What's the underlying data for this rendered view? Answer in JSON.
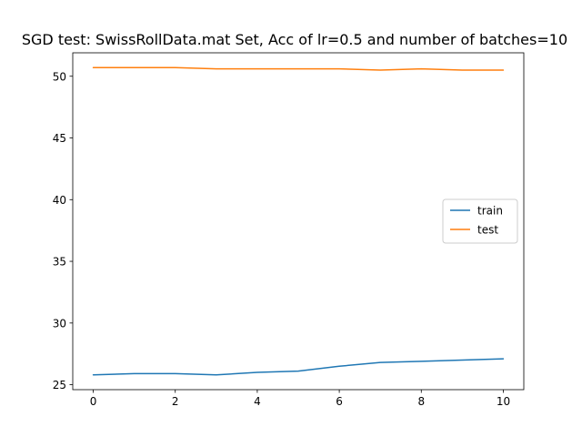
{
  "chart_data": {
    "type": "line",
    "title": "SGD test: SwissRollData.mat Set, Acc of lr=0.5 and number of batches=10",
    "xlabel": "",
    "ylabel": "",
    "xlim": [
      -0.5,
      10.5
    ],
    "ylim": [
      24.6,
      51.9
    ],
    "xticks": [
      0,
      2,
      4,
      6,
      8,
      10
    ],
    "yticks": [
      25,
      30,
      35,
      40,
      45,
      50
    ],
    "grid": false,
    "legend_position": "center-right",
    "x": [
      0,
      1,
      2,
      3,
      4,
      5,
      6,
      7,
      8,
      9,
      10
    ],
    "series": [
      {
        "name": "train",
        "color": "#1f77b4",
        "values": [
          25.8,
          25.9,
          25.9,
          25.8,
          26.0,
          26.1,
          26.5,
          26.8,
          26.9,
          27.0,
          27.1
        ]
      },
      {
        "name": "test",
        "color": "#ff7f0e",
        "values": [
          50.7,
          50.7,
          50.7,
          50.6,
          50.6,
          50.6,
          50.6,
          50.5,
          50.6,
          50.5,
          50.5
        ]
      }
    ]
  }
}
